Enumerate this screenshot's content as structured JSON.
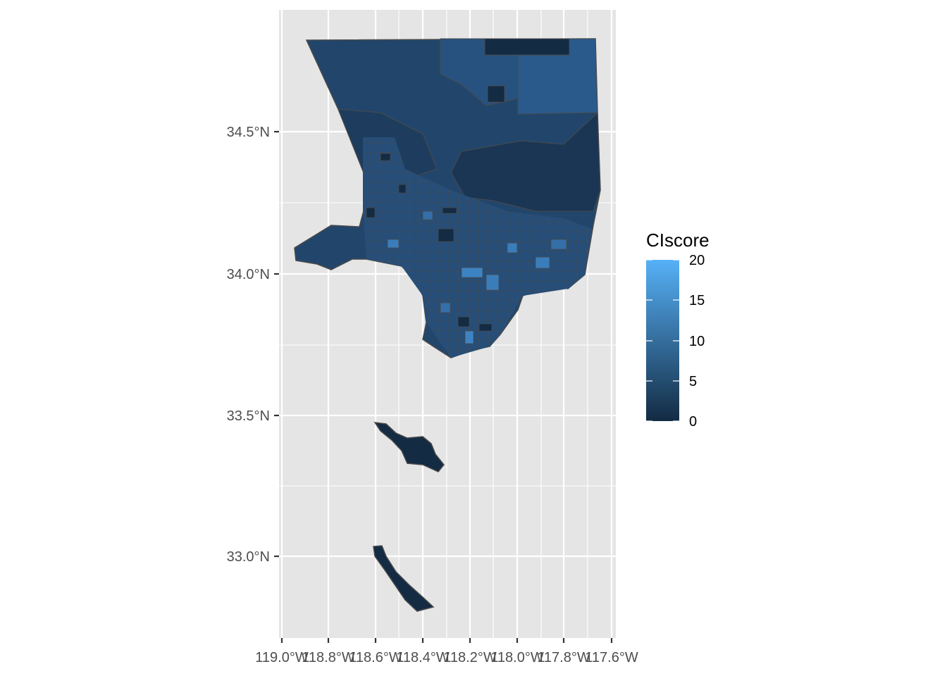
{
  "map": {
    "type": "choropleth",
    "panel_background": "#e5e5e5",
    "grid_color": "#ffffff",
    "region_border_color": "#4a4a4a",
    "x_ticks": [
      "119.0°W",
      "118.8°W",
      "118.6°W",
      "118.4°W",
      "118.2°W",
      "118.0°W",
      "117.8°W",
      "117.6°W"
    ],
    "y_ticks": [
      "34.5°N",
      "34.0°N",
      "33.5°N",
      "33.0°N"
    ],
    "fill_low_color": "#132b43",
    "fill_high_color": "#56b1f7"
  },
  "legend": {
    "title": "CIscore",
    "ticks": [
      "20",
      "15",
      "10",
      "5",
      "0"
    ],
    "range": [
      0,
      20
    ]
  }
}
